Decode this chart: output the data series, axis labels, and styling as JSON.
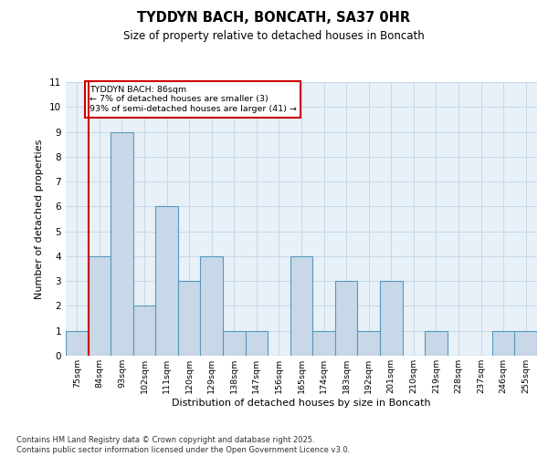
{
  "title": "TYDDYN BACH, BONCATH, SA37 0HR",
  "subtitle": "Size of property relative to detached houses in Boncath",
  "xlabel": "Distribution of detached houses by size in Boncath",
  "ylabel": "Number of detached properties",
  "categories": [
    "75sqm",
    "84sqm",
    "93sqm",
    "102sqm",
    "111sqm",
    "120sqm",
    "129sqm",
    "138sqm",
    "147sqm",
    "156sqm",
    "165sqm",
    "174sqm",
    "183sqm",
    "192sqm",
    "201sqm",
    "210sqm",
    "219sqm",
    "228sqm",
    "237sqm",
    "246sqm",
    "255sqm"
  ],
  "values": [
    1,
    4,
    9,
    2,
    6,
    3,
    4,
    1,
    1,
    0,
    4,
    1,
    3,
    1,
    3,
    0,
    1,
    0,
    0,
    1,
    1
  ],
  "bar_color": "#c8d8e8",
  "bar_edge_color": "#5599bb",
  "annotation_box_color": "#cc0000",
  "highlight_label_line1": "TYDDYN BACH: 86sqm",
  "highlight_label_line2": "← 7% of detached houses are smaller (3)",
  "highlight_label_line3": "93% of semi-detached houses are larger (41) →",
  "ylim": [
    0,
    11
  ],
  "yticks": [
    0,
    1,
    2,
    3,
    4,
    5,
    6,
    7,
    8,
    9,
    10,
    11
  ],
  "grid_color": "#c5d9e8",
  "bg_color": "#e8f0f8",
  "footer": "Contains HM Land Registry data © Crown copyright and database right 2025.\nContains public sector information licensed under the Open Government Licence v3.0."
}
